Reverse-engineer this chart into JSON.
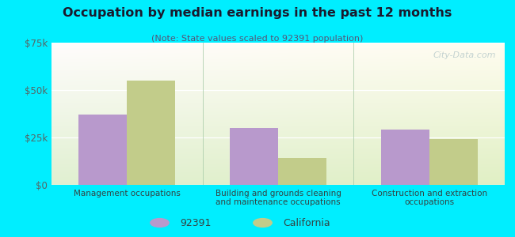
{
  "title": "Occupation by median earnings in the past 12 months",
  "subtitle": "(Note: State values scaled to 92391 population)",
  "categories": [
    "Management occupations",
    "Building and grounds cleaning\nand maintenance occupations",
    "Construction and extraction\noccupations"
  ],
  "values_92391": [
    37000,
    30000,
    29000
  ],
  "values_california": [
    55000,
    14000,
    24000
  ],
  "bar_color_92391": "#b899cc",
  "bar_color_california": "#c2cc8a",
  "ylim": [
    0,
    75000
  ],
  "yticks": [
    0,
    25000,
    50000,
    75000
  ],
  "ytick_labels": [
    "$0",
    "$25k",
    "$50k",
    "$75k"
  ],
  "background_outer": "#00eeff",
  "legend_label_92391": "92391",
  "legend_label_california": "California",
  "bar_width": 0.32,
  "watermark": "City-Data.com",
  "title_color": "#1a1a2e",
  "subtitle_color": "#555577"
}
